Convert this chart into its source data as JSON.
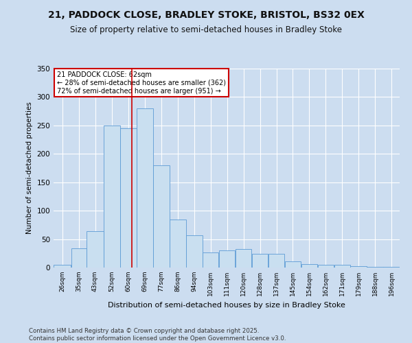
{
  "title_line1": "21, PADDOCK CLOSE, BRADLEY STOKE, BRISTOL, BS32 0EX",
  "title_line2": "Size of property relative to semi-detached houses in Bradley Stoke",
  "xlabel": "Distribution of semi-detached houses by size in Bradley Stoke",
  "ylabel": "Number of semi-detached properties",
  "footer": "Contains HM Land Registry data © Crown copyright and database right 2025.\nContains public sector information licensed under the Open Government Licence v3.0.",
  "annotation_title": "21 PADDOCK CLOSE: 62sqm",
  "annotation_line2": "← 28% of semi-detached houses are smaller (362)",
  "annotation_line3": "72% of semi-detached houses are larger (951) →",
  "property_size": 62,
  "bar_color": "#c9dff0",
  "bar_edge_color": "#5b9bd5",
  "vline_color": "#cc0000",
  "bg_color": "#ccddf0",
  "plot_bg_color": "#ccddf0",
  "grid_color": "#ffffff",
  "annotation_box_color": "#ffffff",
  "annotation_box_edge": "#cc0000",
  "categories": [
    "26sqm",
    "35sqm",
    "43sqm",
    "52sqm",
    "60sqm",
    "69sqm",
    "77sqm",
    "86sqm",
    "94sqm",
    "103sqm",
    "111sqm",
    "120sqm",
    "128sqm",
    "137sqm",
    "145sqm",
    "154sqm",
    "162sqm",
    "171sqm",
    "179sqm",
    "188sqm",
    "196sqm"
  ],
  "bin_edges": [
    21.5,
    30.5,
    38.5,
    47.5,
    56,
    64.5,
    73,
    81.5,
    90,
    98.5,
    107,
    115.5,
    124,
    132.5,
    141,
    149.5,
    158,
    166.5,
    175,
    183.5,
    192,
    200.5
  ],
  "values": [
    5,
    34,
    64,
    250,
    245,
    280,
    180,
    85,
    57,
    27,
    30,
    33,
    24,
    24,
    11,
    6,
    5,
    5,
    3,
    1,
    1
  ],
  "ylim": [
    0,
    350
  ],
  "yticks": [
    0,
    50,
    100,
    150,
    200,
    250,
    300,
    350
  ]
}
